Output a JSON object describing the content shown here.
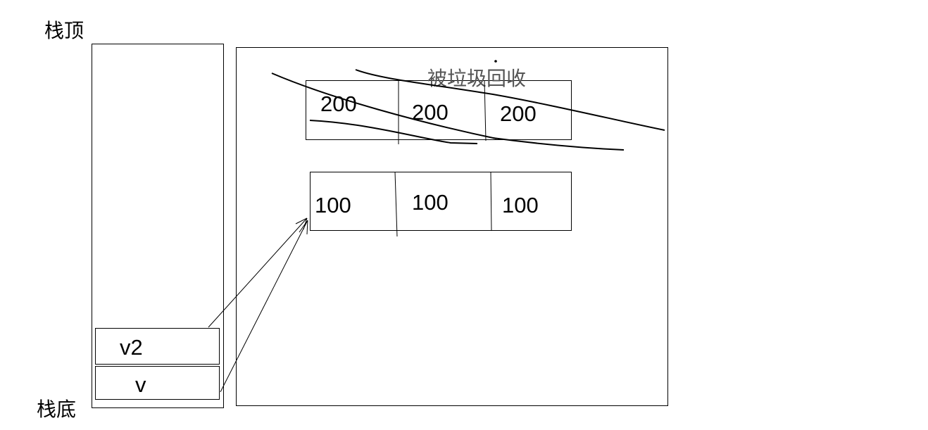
{
  "stack": {
    "top_label": "栈顶",
    "bottom_label": "栈底",
    "variables": [
      {
        "name": "v2"
      },
      {
        "name": "v"
      }
    ]
  },
  "heap": {
    "garbage_label": "被垃圾回收",
    "collected_array": [
      "200",
      "200",
      "200"
    ],
    "live_array": [
      "100",
      "100",
      "100"
    ]
  }
}
